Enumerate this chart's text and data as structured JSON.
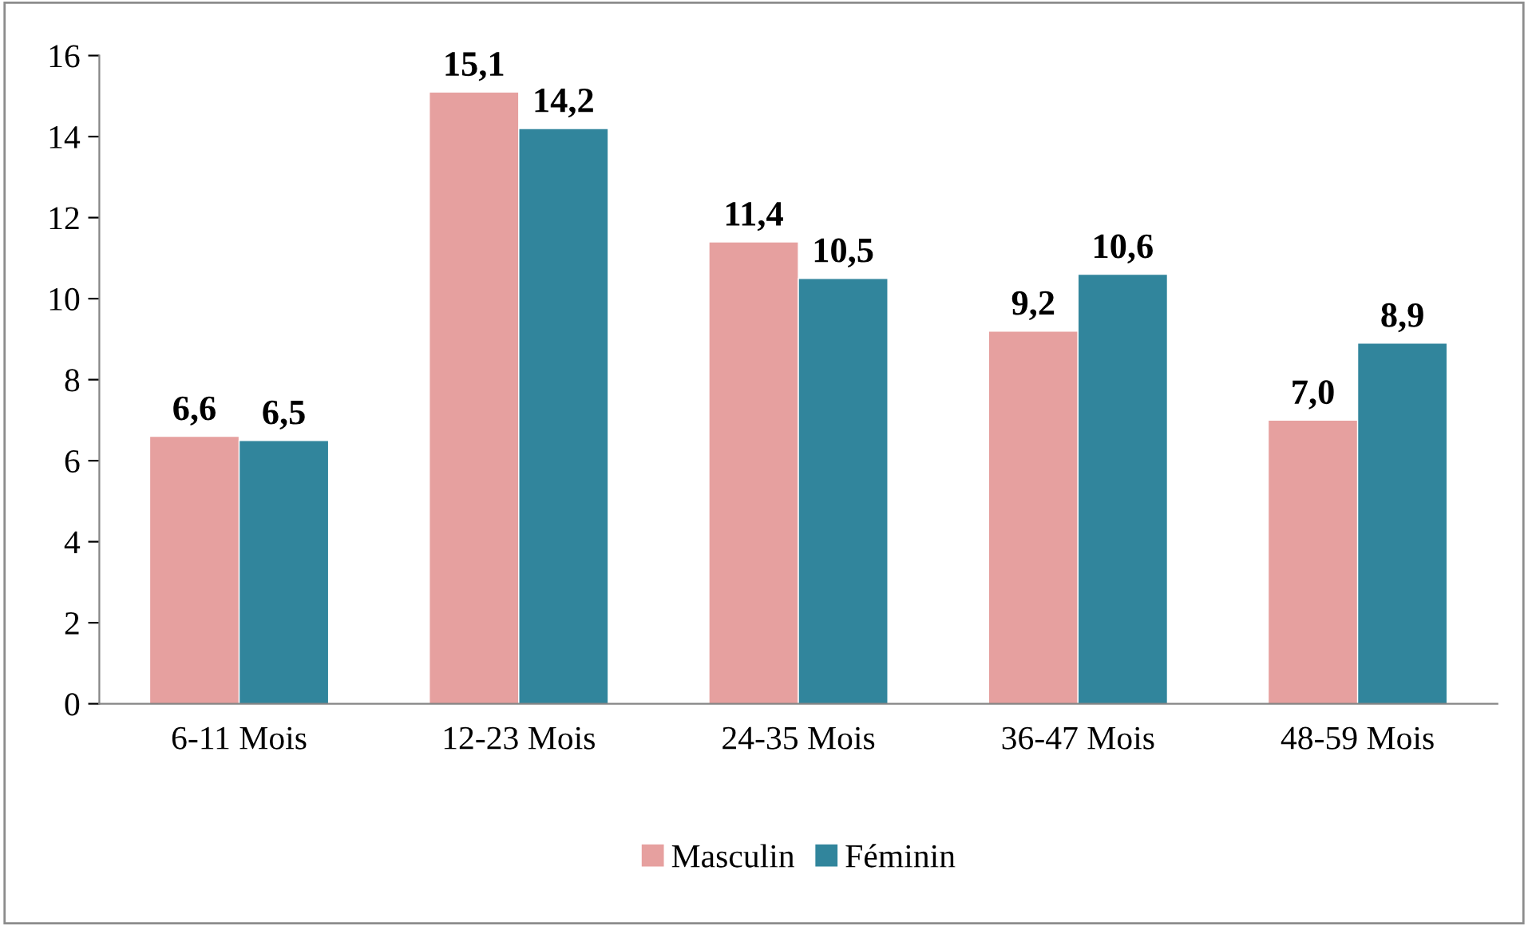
{
  "chart_data": {
    "type": "bar",
    "categories": [
      "6-11 Mois",
      "12-23 Mois",
      "24-35 Mois",
      "36-47 Mois",
      "48-59 Mois"
    ],
    "series": [
      {
        "name": "Masculin",
        "color": "#e6a09f",
        "values": [
          6.6,
          15.1,
          11.4,
          9.2,
          7.0
        ],
        "value_labels": [
          "6,6",
          "15,1",
          "11,4",
          "9,2",
          "7,0"
        ]
      },
      {
        "name": "Féminin",
        "color": "#31859c",
        "values": [
          6.5,
          14.2,
          10.5,
          10.6,
          8.9
        ],
        "value_labels": [
          "6,5",
          "14,2",
          "10,5",
          "10,6",
          "8,9"
        ]
      }
    ],
    "ylim": [
      0,
      16
    ],
    "yticks": [
      0,
      2,
      4,
      6,
      8,
      10,
      12,
      14,
      16
    ],
    "grid": false,
    "legend": "bottom"
  }
}
